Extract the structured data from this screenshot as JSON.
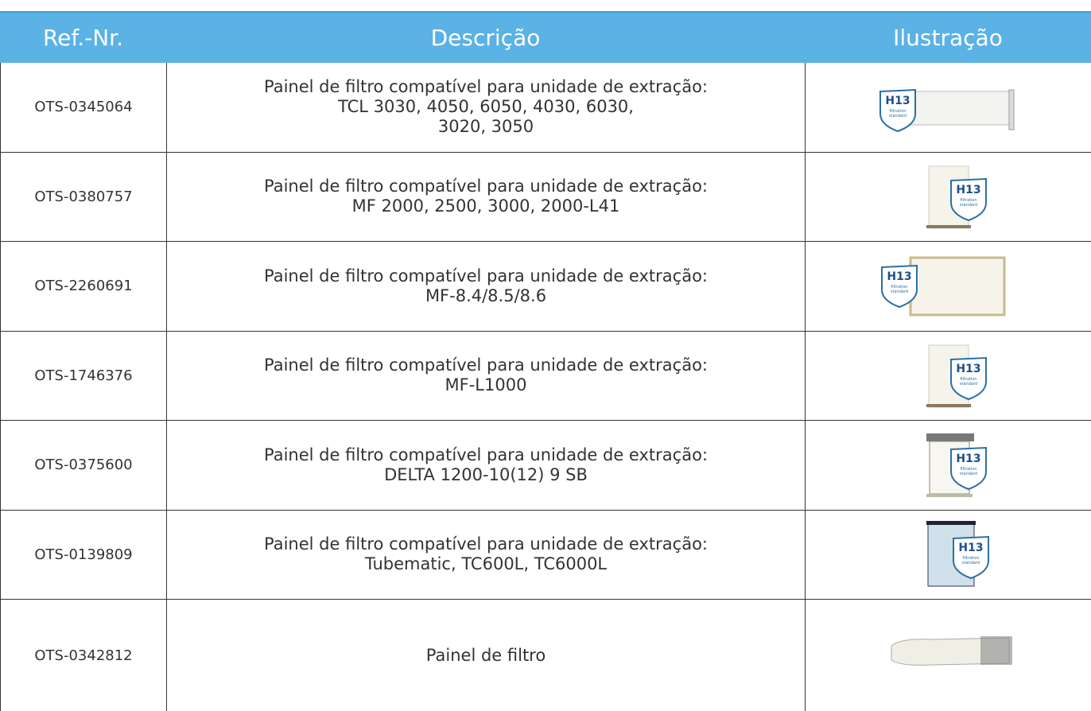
{
  "table": {
    "header": [
      "Ref.-Nr.",
      "Descrição",
      "Ilustração"
    ],
    "badge": {
      "grade": "H13",
      "line1": "filtration",
      "line2": "standard"
    },
    "rows": [
      {
        "ref": "OTS-0345064",
        "description": [
          "Painel de filtro compatível para unidade de extração:",
          "TCL 3030, 4050, 6050, 4030, 6030,",
          "3020, 3050"
        ]
      },
      {
        "ref": "OTS-0380757",
        "description": [
          "Painel de filtro compatível para unidade de extração:",
          "MF 2000, 2500, 3000, 2000-L41"
        ]
      },
      {
        "ref": "OTS-2260691",
        "description": [
          "Painel de filtro compatível para unidade de extração:",
          "MF-8.4/8.5/8.6"
        ]
      },
      {
        "ref": "OTS-1746376",
        "description": [
          "Painel de filtro compatível para unidade de extração:",
          "MF-L1000"
        ]
      },
      {
        "ref": "OTS-0375600",
        "description": [
          "Painel de filtro compatível para unidade de extração:",
          "DELTA 1200-10(12) 9 SB"
        ]
      },
      {
        "ref": "OTS-0139809",
        "description": [
          "Painel de filtro compatível para unidade de extração:",
          "Tubematic, TC600L, TC6000L"
        ]
      },
      {
        "ref": "OTS-0342812",
        "description": [
          "Painel de filtro"
        ]
      }
    ]
  }
}
